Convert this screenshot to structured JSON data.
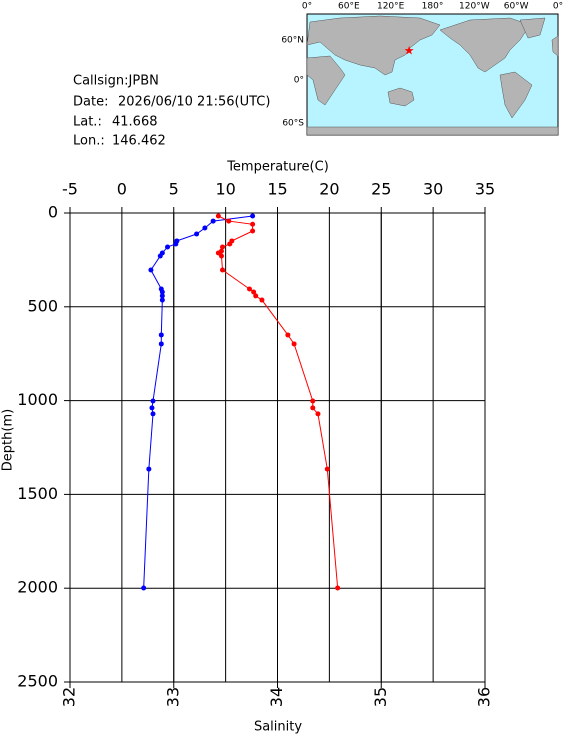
{
  "chart_data": {
    "type": "line",
    "x2_label": "Temperature(C)",
    "x_label": "Salinity",
    "y_label": "Depth(m)",
    "depth": [
      16,
      43,
      60,
      80,
      96,
      112,
      149,
      165,
      181,
      203,
      213,
      229,
      304,
      405,
      421,
      442,
      464,
      650,
      698,
      1002,
      1039,
      1071,
      1365,
      1999
    ],
    "ylim": [
      0,
      2500
    ],
    "yticks": [
      0,
      500,
      1000,
      1500,
      2000,
      2500
    ],
    "xlim": [
      32,
      36
    ],
    "xticks": [
      32,
      33,
      34,
      35,
      36
    ],
    "x2lim": [
      -5,
      35
    ],
    "x2ticks": [
      -5,
      0,
      5,
      10,
      15,
      20,
      25,
      30,
      35
    ],
    "grid": true,
    "series": [
      {
        "axis": "x2",
        "color": "#0000ff",
        "values": [
          12.6,
          8.8,
          null,
          8.0,
          null,
          7.2,
          5.3,
          5.2,
          4.4,
          null,
          3.9,
          3.7,
          2.8,
          3.8,
          3.9,
          3.9,
          3.9,
          3.8,
          3.8,
          3.0,
          2.9,
          3.0,
          2.6,
          2.1
        ]
      },
      {
        "axis": "x",
        "color": "#ff0000",
        "values": [
          33.43,
          33.53,
          33.76,
          null,
          33.76,
          null,
          33.56,
          33.54,
          33.47,
          33.46,
          33.43,
          33.46,
          33.47,
          33.73,
          33.77,
          33.79,
          33.85,
          34.1,
          34.16,
          34.34,
          34.34,
          34.39,
          34.48,
          34.58
        ]
      }
    ]
  },
  "info": {
    "callsign": "Callsign:JPBN",
    "date_label": "Date:",
    "date": "2026/06/10 21:56(UTC)",
    "lat_label": "Lat.:",
    "lat": 41.668,
    "lon_label": "Lon.:",
    "lon": 146.462
  },
  "map": {
    "lon_labels": [
      "0°",
      "60°E",
      "120°E",
      "180°",
      "120°W",
      "60°W",
      "0°"
    ],
    "lat_labels": [
      "60°N",
      "0°",
      "60°S"
    ],
    "marker_color": "#ff0000"
  }
}
